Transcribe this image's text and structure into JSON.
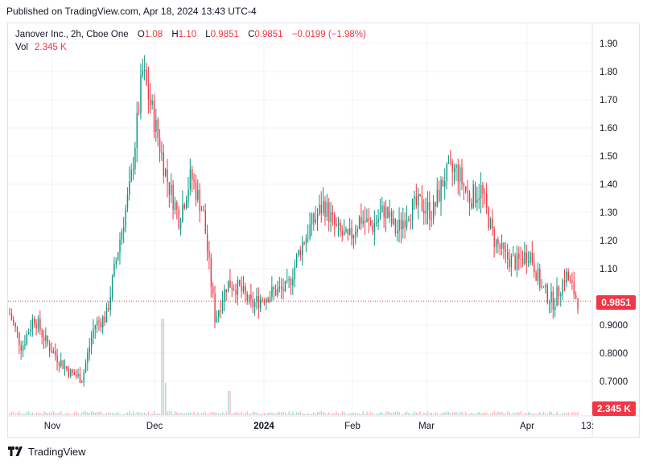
{
  "header": {
    "published": "Published on TradingView.com, Apr 18, 2024 13:43 UTC-4"
  },
  "legend": {
    "symbol": "Janover Inc., 2h, Cboe One",
    "o_label": "O",
    "o_value": "1.08",
    "h_label": "H",
    "h_value": "1.10",
    "l_label": "L",
    "l_value": "0.9851",
    "c_label": "C",
    "c_value": "0.9851",
    "change": "−0.0199 (−1.98%)",
    "vol_label": "Vol",
    "vol_value": "2.345 K"
  },
  "price_tag": "0.9851",
  "volume_tag": "2.345 K",
  "footer": {
    "brand": "TradingView",
    "logo_icon": "tradingview-logo-icon"
  },
  "colors": {
    "up": "#089981",
    "down": "#f23645",
    "grid": "#f0f3fa",
    "text": "#131722"
  },
  "chart_data": {
    "type": "candlestick",
    "ylim": [
      0.62,
      1.94
    ],
    "y_ticks": [
      "0.7000",
      "0.8000",
      "0.9000",
      "1.10",
      "1.20",
      "1.30",
      "1.40",
      "1.50",
      "1.60",
      "1.70",
      "1.80",
      "1.90"
    ],
    "x_ticks": [
      "Nov",
      "Dec",
      "2024",
      "Feb",
      "Mar",
      "Apr",
      "13:"
    ],
    "last_price": 0.9851,
    "points": [
      [
        "Oct 26",
        0.94
      ],
      [
        "Oct 30",
        0.82
      ],
      [
        "Nov 3",
        0.93
      ],
      [
        "Nov 7",
        0.84
      ],
      [
        "Nov 10",
        0.78
      ],
      [
        "Nov 14",
        0.73
      ],
      [
        "Nov 17",
        0.71
      ],
      [
        "Nov 21",
        0.9
      ],
      [
        "Nov 27",
        0.93
      ],
      [
        "Nov 30",
        1.18
      ],
      [
        "Dec 4",
        1.4
      ],
      [
        "Dec 6",
        1.8
      ],
      [
        "Dec 8",
        1.62
      ],
      [
        "Dec 12",
        1.42
      ],
      [
        "Dec 15",
        1.28
      ],
      [
        "Dec 18",
        1.43
      ],
      [
        "Dec 21",
        1.3
      ],
      [
        "Dec 26",
        0.92
      ],
      [
        "Dec 29",
        1.05
      ],
      [
        "Jan 3",
        1.03
      ],
      [
        "Jan 8",
        0.97
      ],
      [
        "Jan 12",
        1.0
      ],
      [
        "Jan 16",
        1.02
      ],
      [
        "Jan 22",
        1.03
      ],
      [
        "Jan 25",
        1.17
      ],
      [
        "Jan 29",
        1.26
      ],
      [
        "Feb 1",
        1.33
      ],
      [
        "Feb 6",
        1.24
      ],
      [
        "Feb 9",
        1.2
      ],
      [
        "Feb 14",
        1.28
      ],
      [
        "Feb 20",
        1.25
      ],
      [
        "Feb 26",
        1.31
      ],
      [
        "Mar 1",
        1.23
      ],
      [
        "Mar 6",
        1.31
      ],
      [
        "Mar 11",
        1.33
      ],
      [
        "Mar 15",
        1.3
      ],
      [
        "Mar 19",
        1.43
      ],
      [
        "Mar 22",
        1.45
      ],
      [
        "Mar 26",
        1.35
      ],
      [
        "Mar 28",
        1.38
      ],
      [
        "Apr 1",
        1.21
      ],
      [
        "Apr 4",
        1.14
      ],
      [
        "Apr 8",
        1.12
      ],
      [
        "Apr 11",
        1.16
      ],
      [
        "Apr 13",
        1.03
      ],
      [
        "Apr 15",
        0.98
      ],
      [
        "Apr 17",
        1.08
      ],
      [
        "Apr 18",
        0.9851
      ]
    ]
  }
}
